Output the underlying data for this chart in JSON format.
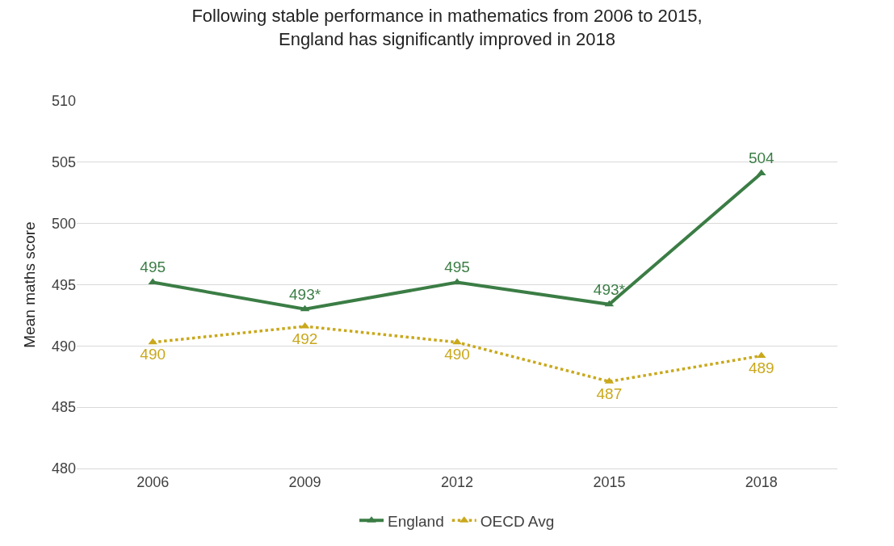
{
  "chart_data": {
    "type": "line",
    "title": "Following stable performance in mathematics from 2006 to 2015,\nEngland has significantly improved in 2018",
    "ylabel": "Mean maths score",
    "categories": [
      "2006",
      "2009",
      "2012",
      "2015",
      "2018"
    ],
    "series": [
      {
        "name": "England",
        "color": "#3b7d45",
        "values": [
          495.2,
          493.0,
          495.2,
          493.4,
          504.1
        ],
        "value_labels": [
          "495",
          "493*",
          "495",
          "493*",
          "504"
        ],
        "line_style": "solid",
        "marker": "triangle"
      },
      {
        "name": "OECD Avg",
        "color": "#c9a81c",
        "values": [
          490.3,
          491.6,
          490.3,
          487.1,
          489.2
        ],
        "value_labels": [
          "490",
          "492",
          "490",
          "487",
          "489"
        ],
        "line_style": "dotted",
        "marker": "triangle"
      }
    ],
    "ylim": [
      480,
      510
    ],
    "yticks": [
      480,
      485,
      490,
      495,
      500,
      505,
      510
    ],
    "grid": "y",
    "legend": "bottom"
  }
}
